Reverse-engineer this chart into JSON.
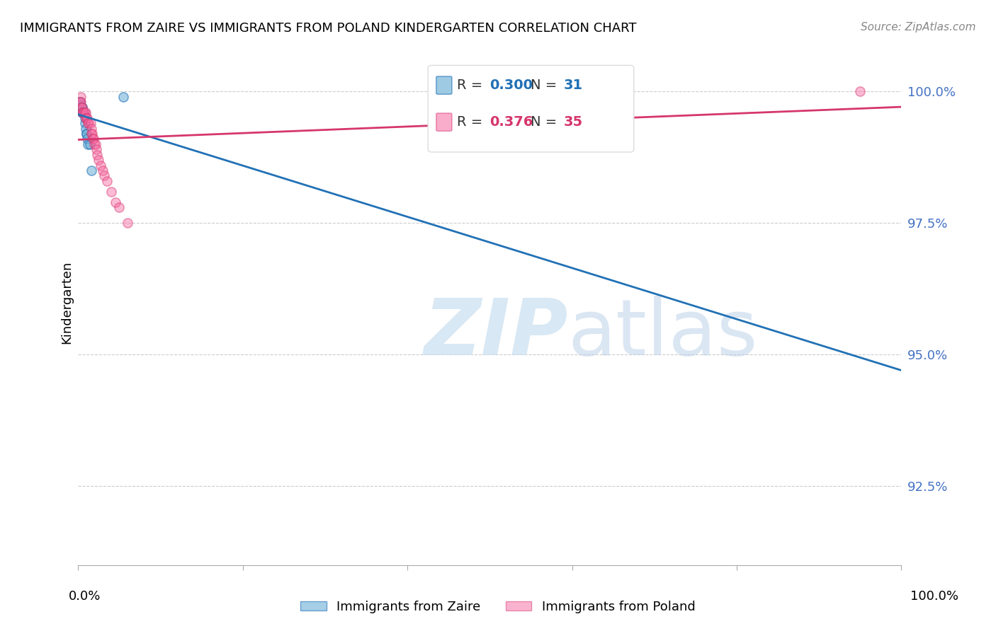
{
  "title": "IMMIGRANTS FROM ZAIRE VS IMMIGRANTS FROM POLAND KINDERGARTEN CORRELATION CHART",
  "source_text": "Source: ZipAtlas.com",
  "ylabel": "Kindergarten",
  "ytick_labels": [
    "100.0%",
    "97.5%",
    "95.0%",
    "92.5%"
  ],
  "ytick_values": [
    1.0,
    0.975,
    0.95,
    0.925
  ],
  "xmin": 0.0,
  "xmax": 1.0,
  "ymin": 0.91,
  "ymax": 1.01,
  "zaire_color": "#6baed6",
  "poland_color": "#f768a1",
  "zaire_line_color": "#2171b5",
  "poland_line_color": "#d6366e",
  "legend_R_zaire": "0.300",
  "legend_N_zaire": "31",
  "legend_R_poland": "0.376",
  "legend_N_poland": "35",
  "zaire_x": [
    0.001,
    0.002,
    0.002,
    0.003,
    0.003,
    0.003,
    0.003,
    0.003,
    0.004,
    0.004,
    0.004,
    0.004,
    0.005,
    0.005,
    0.005,
    0.005,
    0.005,
    0.006,
    0.006,
    0.007,
    0.007,
    0.008,
    0.008,
    0.009,
    0.01,
    0.01,
    0.011,
    0.012,
    0.014,
    0.016,
    0.055
  ],
  "zaire_y": [
    0.998,
    0.998,
    0.998,
    0.997,
    0.997,
    0.997,
    0.997,
    0.997,
    0.997,
    0.997,
    0.997,
    0.997,
    0.997,
    0.997,
    0.996,
    0.996,
    0.996,
    0.996,
    0.996,
    0.996,
    0.996,
    0.995,
    0.994,
    0.993,
    0.992,
    0.992,
    0.991,
    0.99,
    0.99,
    0.985,
    0.999
  ],
  "poland_x": [
    0.002,
    0.003,
    0.003,
    0.004,
    0.005,
    0.005,
    0.006,
    0.007,
    0.008,
    0.009,
    0.009,
    0.01,
    0.011,
    0.012,
    0.013,
    0.015,
    0.016,
    0.016,
    0.017,
    0.018,
    0.019,
    0.02,
    0.021,
    0.022,
    0.023,
    0.025,
    0.027,
    0.03,
    0.032,
    0.035,
    0.04,
    0.045,
    0.05,
    0.06,
    0.95
  ],
  "poland_y": [
    0.998,
    0.999,
    0.998,
    0.997,
    0.997,
    0.996,
    0.996,
    0.996,
    0.996,
    0.996,
    0.995,
    0.995,
    0.995,
    0.994,
    0.994,
    0.994,
    0.993,
    0.992,
    0.992,
    0.991,
    0.991,
    0.99,
    0.99,
    0.989,
    0.988,
    0.987,
    0.986,
    0.985,
    0.984,
    0.983,
    0.981,
    0.979,
    0.978,
    0.975,
    1.0
  ],
  "grid_color": "#cccccc",
  "background_color": "#ffffff",
  "legend_bottom_zaire": "Immigrants from Zaire",
  "legend_bottom_poland": "Immigrants from Poland"
}
